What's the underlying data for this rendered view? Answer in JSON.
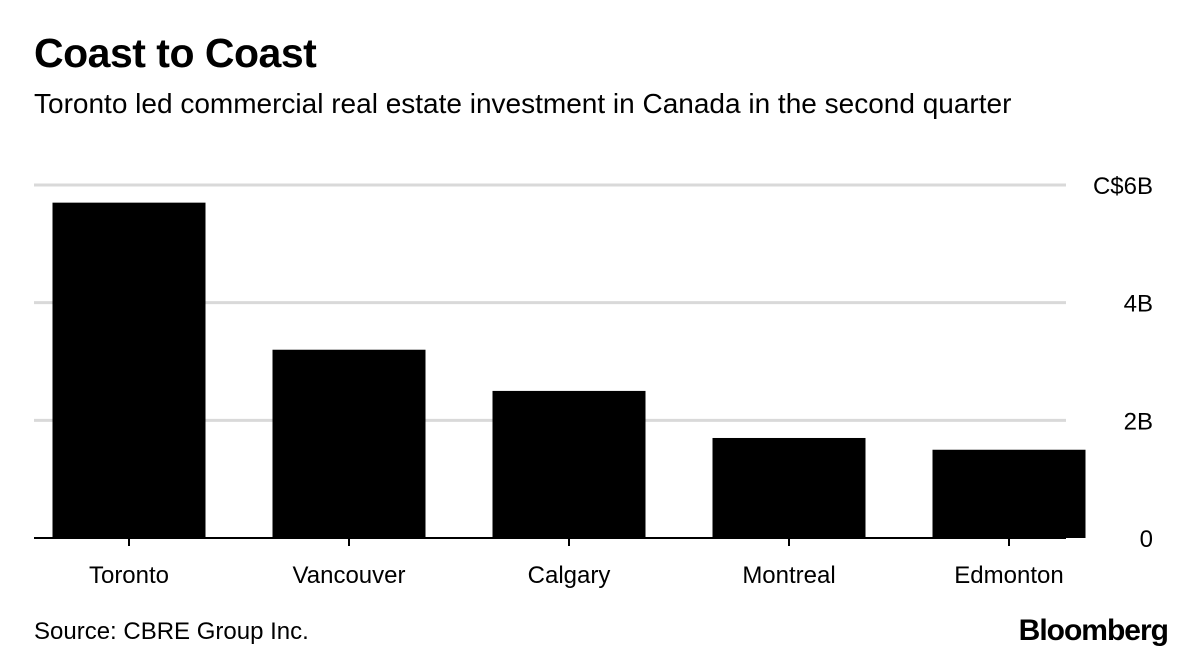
{
  "header": {
    "title": "Coast to Coast",
    "subtitle": "Toronto led commercial real estate investment in Canada in the second quarter"
  },
  "footer": {
    "source": "Source: CBRE Group Inc.",
    "brand": "Bloomberg"
  },
  "colors": {
    "bar": "#000000",
    "grid": "#d9d9d9",
    "baseline": "#000000",
    "text": "#000000"
  },
  "chart_data": {
    "type": "bar",
    "title": "Coast to Coast",
    "subtitle": "Toronto led commercial real estate investment in Canada in the second quarter",
    "categories": [
      "Toronto",
      "Vancouver",
      "Calgary",
      "Montreal",
      "Edmonton"
    ],
    "values": [
      5.7,
      3.2,
      2.5,
      1.7,
      1.5
    ],
    "unit": "C$ billions",
    "ylim": [
      0,
      6
    ],
    "yticks": [
      0,
      2,
      4,
      6
    ],
    "ytick_labels": [
      "0",
      "2B",
      "4B",
      "C$6B"
    ],
    "y_axis_side": "right",
    "grid": true,
    "legend": "none"
  }
}
